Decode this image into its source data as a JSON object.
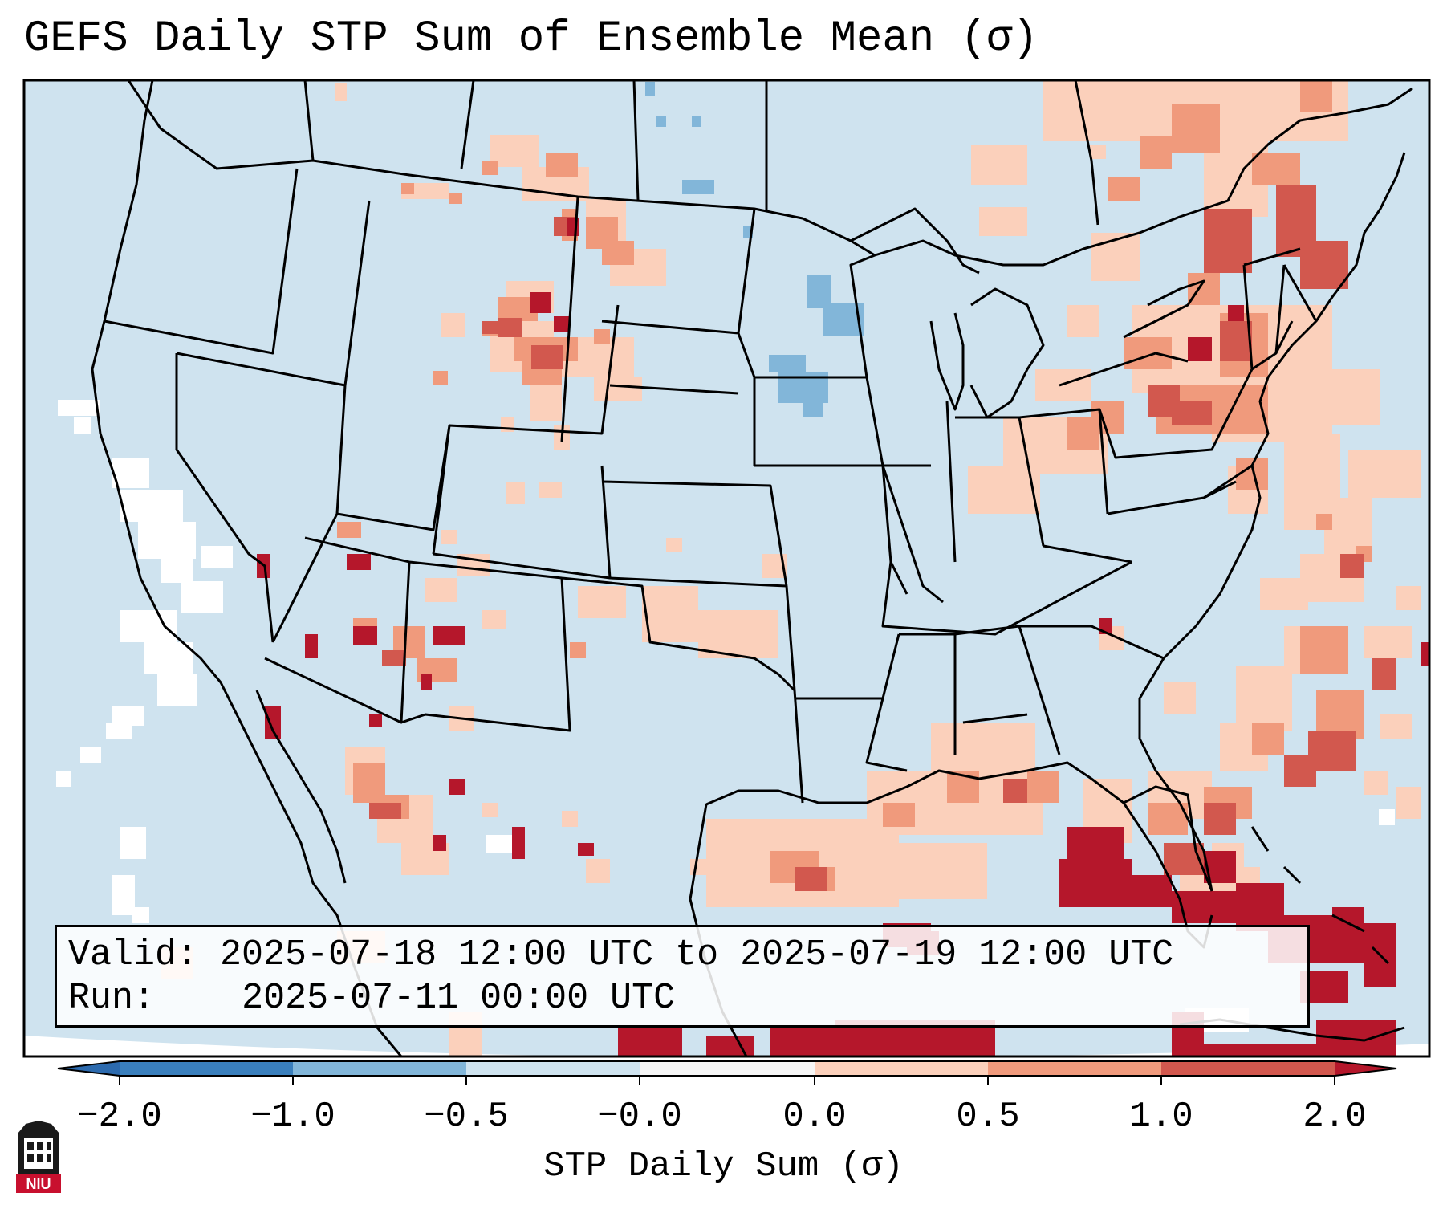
{
  "title": "GEFS Daily STP Sum of Ensemble Mean (σ)",
  "info": {
    "valid_label": "Valid:",
    "valid_value": "2025-07-18 12:00 UTC to 2025-07-19 12:00 UTC",
    "run_label": "Run:",
    "run_value": "2025-07-11 00:00 UTC"
  },
  "colorbar": {
    "label": "STP Daily Sum (σ)",
    "ticks": [
      "−2.0",
      "−1.0",
      "−0.5",
      "−0.0",
      "0.0",
      "0.5",
      "1.0",
      "2.0"
    ],
    "colors": [
      "#3a7fbc",
      "#82b6d9",
      "#cfe3ef",
      "#f6f6f6",
      "#fbd0bb",
      "#f09a7c",
      "#d2584e",
      "#b5172b"
    ],
    "extend_low_color": "#2c6aae",
    "extend_high_color": "#b5172b"
  },
  "colors": {
    "ocean": "#cfe3ef",
    "land": "#d2e4f0",
    "border": "#000000"
  },
  "logo": {
    "text": "NIU"
  }
}
